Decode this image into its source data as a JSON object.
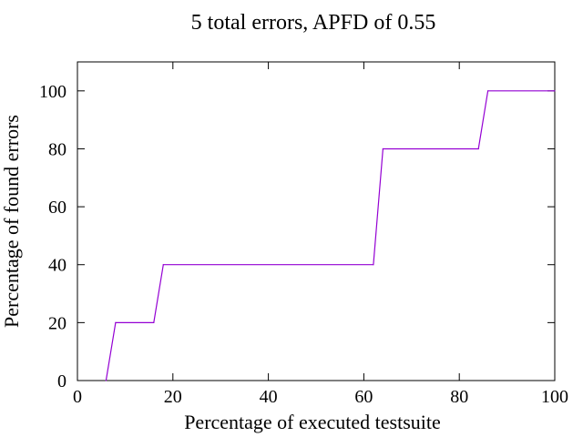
{
  "chart_data": {
    "type": "line",
    "title": "5 total errors, APFD of 0.55",
    "xlabel": "Percentage of executed testsuite",
    "ylabel": "Percentage of found errors",
    "xlim": [
      0,
      100
    ],
    "ylim": [
      0,
      110
    ],
    "x_ticks": [
      "0",
      "20",
      "40",
      "60",
      "80",
      "100"
    ],
    "y_ticks": [
      "0",
      "20",
      "40",
      "60",
      "80",
      "100"
    ],
    "grid": false,
    "legend": "none",
    "series": [
      {
        "color": "#9400d3",
        "x": [
          6,
          8,
          16,
          18,
          62,
          64,
          84,
          86,
          100
        ],
        "y": [
          0,
          20,
          20,
          40,
          40,
          80,
          80,
          100,
          100
        ]
      }
    ]
  }
}
